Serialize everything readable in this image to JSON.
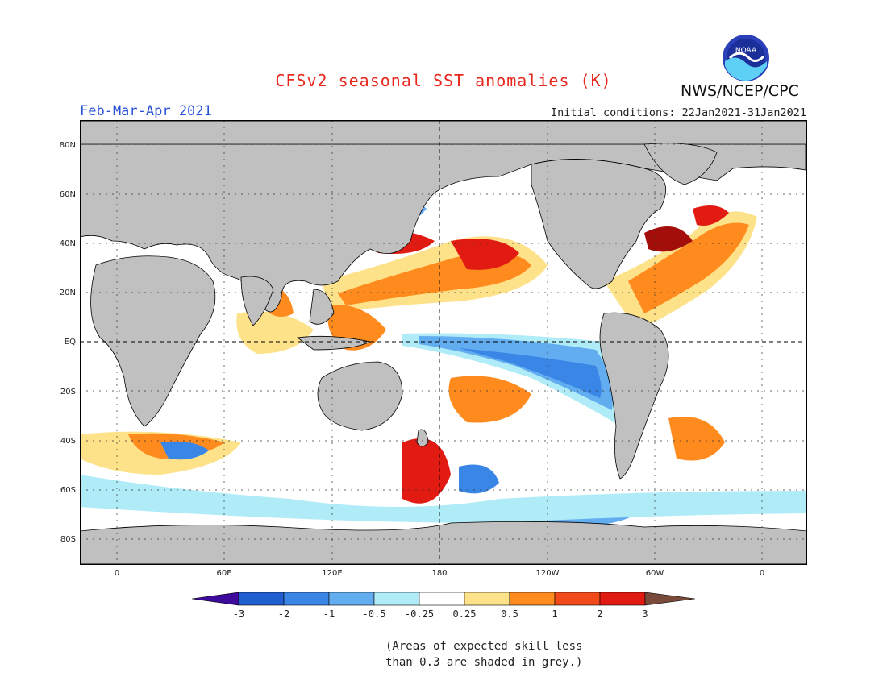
{
  "title": "CFSv2 seasonal SST anomalies (K)",
  "season": "Feb-Mar-Apr 2021",
  "initial_conditions": "Initial conditions: 22Jan2021-31Jan2021",
  "organization": "NWS/NCEP/CPC",
  "logo_text": "NOAA",
  "lat_labels": [
    "80N",
    "60N",
    "40N",
    "20N",
    "EQ",
    "20S",
    "40S",
    "60S",
    "80S"
  ],
  "lon_labels": [
    "0",
    "60E",
    "120E",
    "180",
    "120W",
    "60W",
    "0"
  ],
  "colorbar": {
    "ticks": [
      "-3",
      "-2",
      "-1",
      "-0.5",
      "-0.25",
      "0.25",
      "0.5",
      "1",
      "2",
      "3"
    ],
    "colors": [
      "#3d0a9c",
      "#1f5fcf",
      "#3a86e6",
      "#62adf0",
      "#b0ecf8",
      "#ffffff",
      "#fde28a",
      "#ff8a1e",
      "#f04a1a",
      "#e11a12",
      "#a30d0a",
      "#7a4a3a"
    ]
  },
  "note": {
    "line1": "(Areas of expected skill less",
    "line2": "than 0.3 are shaded in grey.)"
  },
  "colors": {
    "land": "#c0c0c0",
    "title": "#e8281e",
    "season": "#2a52d6"
  }
}
